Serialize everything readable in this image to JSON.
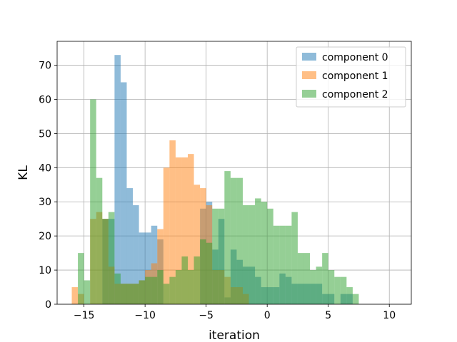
{
  "chart_data": {
    "type": "histogram",
    "xlabel": "iteration",
    "ylabel": "KL",
    "xlim": [
      -17.2,
      11.8
    ],
    "ylim": [
      0,
      77
    ],
    "xticks": [
      -15,
      -10,
      -5,
      0,
      5,
      10
    ],
    "xtick_labels": [
      "−15",
      "−10",
      "−5",
      "0",
      "5",
      "10"
    ],
    "yticks": [
      0,
      10,
      20,
      30,
      40,
      50,
      60,
      70
    ],
    "ytick_labels": [
      "0",
      "10",
      "20",
      "30",
      "40",
      "50",
      "60",
      "70"
    ],
    "grid": true,
    "legend_position": "top-right",
    "series": [
      {
        "name": "component 0",
        "color": "#1f77b4",
        "bin_edges": [
          -16.0,
          -15.5,
          -15.0,
          -14.5,
          -14.0,
          -13.5,
          -13.0,
          -12.5,
          -12.0,
          -11.5,
          -11.0,
          -10.5,
          -10.0,
          -9.5,
          -9.0,
          -8.5,
          -8.0,
          -7.5,
          -7.0,
          -6.5,
          -6.0,
          -5.5,
          -5.0,
          -4.5,
          -4.0,
          -3.5,
          -3.0,
          -2.5,
          -2.0,
          -1.5,
          -1.0,
          -0.5,
          0.0,
          0.5,
          1.0,
          1.5,
          2.0,
          2.5,
          3.0,
          3.5,
          4.0,
          4.5,
          5.0,
          5.5,
          6.0,
          6.5,
          7.0,
          7.5
        ],
        "counts": [
          0,
          0,
          0,
          0,
          0,
          25,
          25,
          73,
          65,
          34,
          29,
          21,
          21,
          23,
          19,
          0,
          0,
          0,
          0,
          0,
          0,
          28,
          30,
          16,
          25,
          2,
          16,
          13,
          11,
          11,
          8,
          5,
          5,
          5,
          9,
          8,
          6,
          6,
          6,
          6,
          6,
          3,
          3,
          0,
          3,
          3,
          0
        ]
      },
      {
        "name": "component 1",
        "color": "#ff7f0e",
        "bin_edges": [
          -16.0,
          -15.5,
          -15.0,
          -14.5,
          -14.0,
          -13.5,
          -13.0,
          -12.5,
          -12.0,
          -11.5,
          -11.0,
          -10.5,
          -10.0,
          -9.5,
          -9.0,
          -8.5,
          -8.0,
          -7.5,
          -7.0,
          -6.5,
          -6.0,
          -5.5,
          -5.0,
          -4.5,
          -4.0,
          -3.5,
          -3.0,
          -2.5,
          -2.0,
          -1.5,
          -1.0
        ],
        "counts": [
          5,
          3,
          0,
          25,
          27,
          25,
          11,
          6,
          6,
          6,
          6,
          7,
          10,
          12,
          22,
          40,
          48,
          43,
          43,
          44,
          35,
          34,
          29,
          10,
          10,
          8,
          5,
          5,
          3,
          0
        ]
      },
      {
        "name": "component 2",
        "color": "#2ca02c",
        "bin_edges": [
          -15.5,
          -15.0,
          -14.5,
          -14.0,
          -13.5,
          -13.0,
          -12.5,
          -12.0,
          -11.5,
          -11.0,
          -10.5,
          -10.0,
          -9.5,
          -9.0,
          -8.5,
          -8.0,
          -7.5,
          -7.0,
          -6.5,
          -6.0,
          -5.5,
          -5.0,
          -4.5,
          -4.0,
          -3.5,
          -3.0,
          -2.5,
          -2.0,
          -1.5,
          -1.0,
          -0.5,
          0.0,
          0.5,
          1.0,
          1.5,
          2.0,
          2.5,
          3.0,
          3.5,
          4.0,
          4.5,
          5.0,
          5.5,
          6.0,
          6.5,
          7.0,
          7.5,
          8.0,
          8.5,
          9.0,
          9.5,
          10.0,
          10.5
        ],
        "counts": [
          15,
          7,
          60,
          37,
          25,
          27,
          9,
          6,
          6,
          6,
          7,
          8,
          8,
          10,
          6,
          8,
          10,
          14,
          10,
          14,
          19,
          18,
          28,
          28,
          39,
          37,
          37,
          29,
          29,
          31,
          30,
          28,
          23,
          23,
          23,
          27,
          15,
          15,
          10,
          11,
          15,
          10,
          8,
          8,
          5,
          3,
          0,
          0,
          0,
          0,
          0,
          0
        ]
      }
    ]
  }
}
